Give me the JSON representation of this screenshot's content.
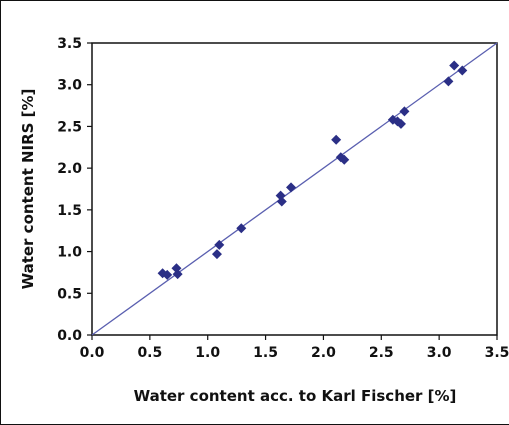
{
  "chart_data": {
    "type": "scatter",
    "title": "",
    "xlabel": "Water content acc. to Karl Fischer [%]",
    "ylabel": "Water content NIRS [%]",
    "xlim": [
      0.0,
      3.5
    ],
    "ylim": [
      0.0,
      3.5
    ],
    "xticks": [
      "0.0",
      "0.5",
      "1.0",
      "1.5",
      "2.0",
      "2.5",
      "3.0",
      "3.5"
    ],
    "yticks": [
      "0.0",
      "0.5",
      "1.0",
      "1.5",
      "2.0",
      "2.5",
      "3.0",
      "3.5"
    ],
    "grid": false,
    "legend": "none",
    "marker": "diamond",
    "marker_color": "#2b2f86",
    "line_color": "#5a5fb0",
    "reference_line": {
      "x": [
        0.0,
        3.5
      ],
      "y": [
        0.0,
        3.5
      ]
    },
    "points": [
      {
        "x": 0.61,
        "y": 0.74
      },
      {
        "x": 0.65,
        "y": 0.72
      },
      {
        "x": 0.73,
        "y": 0.8
      },
      {
        "x": 0.74,
        "y": 0.73
      },
      {
        "x": 1.08,
        "y": 0.97
      },
      {
        "x": 1.1,
        "y": 1.08
      },
      {
        "x": 1.29,
        "y": 1.28
      },
      {
        "x": 1.63,
        "y": 1.67
      },
      {
        "x": 1.64,
        "y": 1.6
      },
      {
        "x": 1.72,
        "y": 1.77
      },
      {
        "x": 2.11,
        "y": 2.34
      },
      {
        "x": 2.15,
        "y": 2.13
      },
      {
        "x": 2.18,
        "y": 2.1
      },
      {
        "x": 2.6,
        "y": 2.58
      },
      {
        "x": 2.64,
        "y": 2.56
      },
      {
        "x": 2.67,
        "y": 2.53
      },
      {
        "x": 2.7,
        "y": 2.68
      },
      {
        "x": 3.08,
        "y": 3.04
      },
      {
        "x": 3.13,
        "y": 3.23
      },
      {
        "x": 3.2,
        "y": 3.17
      }
    ]
  }
}
